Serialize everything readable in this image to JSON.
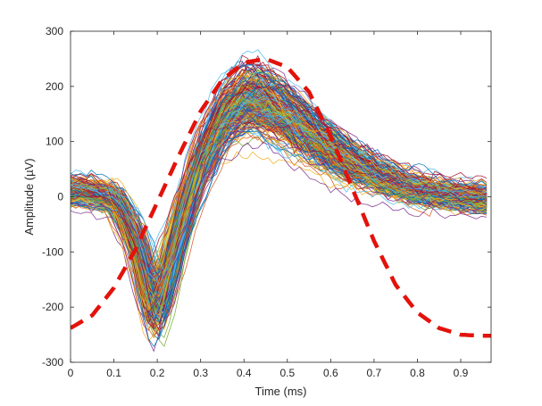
{
  "chart_data": {
    "type": "line",
    "xlabel": "Time (ms)",
    "ylabel": "Amplitude (µV)",
    "xlim": [
      0,
      0.97
    ],
    "ylim": [
      -300,
      300
    ],
    "xticks": [
      0,
      0.1,
      0.2,
      0.3,
      0.4,
      0.5,
      0.6,
      0.7,
      0.8,
      0.9
    ],
    "xtick_labels": [
      "0",
      "0.1",
      "0.2",
      "0.3",
      "0.4",
      "0.5",
      "0.6",
      "0.7",
      "0.8",
      "0.9"
    ],
    "yticks": [
      -300,
      -200,
      -100,
      0,
      100,
      200,
      300
    ],
    "ytick_labels": [
      "-300",
      "-200",
      "-100",
      "0",
      "100",
      "200",
      "300"
    ],
    "grid": false,
    "series": [
      {
        "style": "dashed",
        "color": "#e3120b",
        "x": [
          0,
          0.05,
          0.1,
          0.15,
          0.2,
          0.25,
          0.3,
          0.35,
          0.4,
          0.45,
          0.5,
          0.55,
          0.6,
          0.65,
          0.7,
          0.75,
          0.8,
          0.85,
          0.9,
          0.95,
          0.97
        ],
        "y": [
          -238,
          -215,
          -165,
          -95,
          -10,
          75,
          155,
          212,
          243,
          250,
          235,
          190,
          110,
          15,
          -80,
          -160,
          -210,
          -238,
          -250,
          -252,
          -252
        ]
      },
      {
        "style": "bundle",
        "description_count": 260,
        "x": [
          0,
          0.05,
          0.1,
          0.15,
          0.18,
          0.2,
          0.22,
          0.25,
          0.3,
          0.35,
          0.4,
          0.45,
          0.5,
          0.55,
          0.6,
          0.65,
          0.7,
          0.75,
          0.8,
          0.85,
          0.9,
          0.97
        ],
        "mean_y": [
          10,
          5,
          -5,
          -80,
          -170,
          -190,
          -150,
          -60,
          60,
          140,
          175,
          170,
          145,
          115,
          85,
          60,
          40,
          25,
          12,
          5,
          0,
          -5
        ],
        "spread": [
          25,
          25,
          25,
          30,
          30,
          28,
          30,
          35,
          38,
          38,
          38,
          38,
          38,
          36,
          34,
          32,
          30,
          28,
          26,
          25,
          25,
          25
        ],
        "colors": [
          "#0072bd",
          "#d95319",
          "#edb120",
          "#7e2f8e",
          "#77ac30",
          "#4dbeee",
          "#a2142f"
        ]
      }
    ]
  }
}
